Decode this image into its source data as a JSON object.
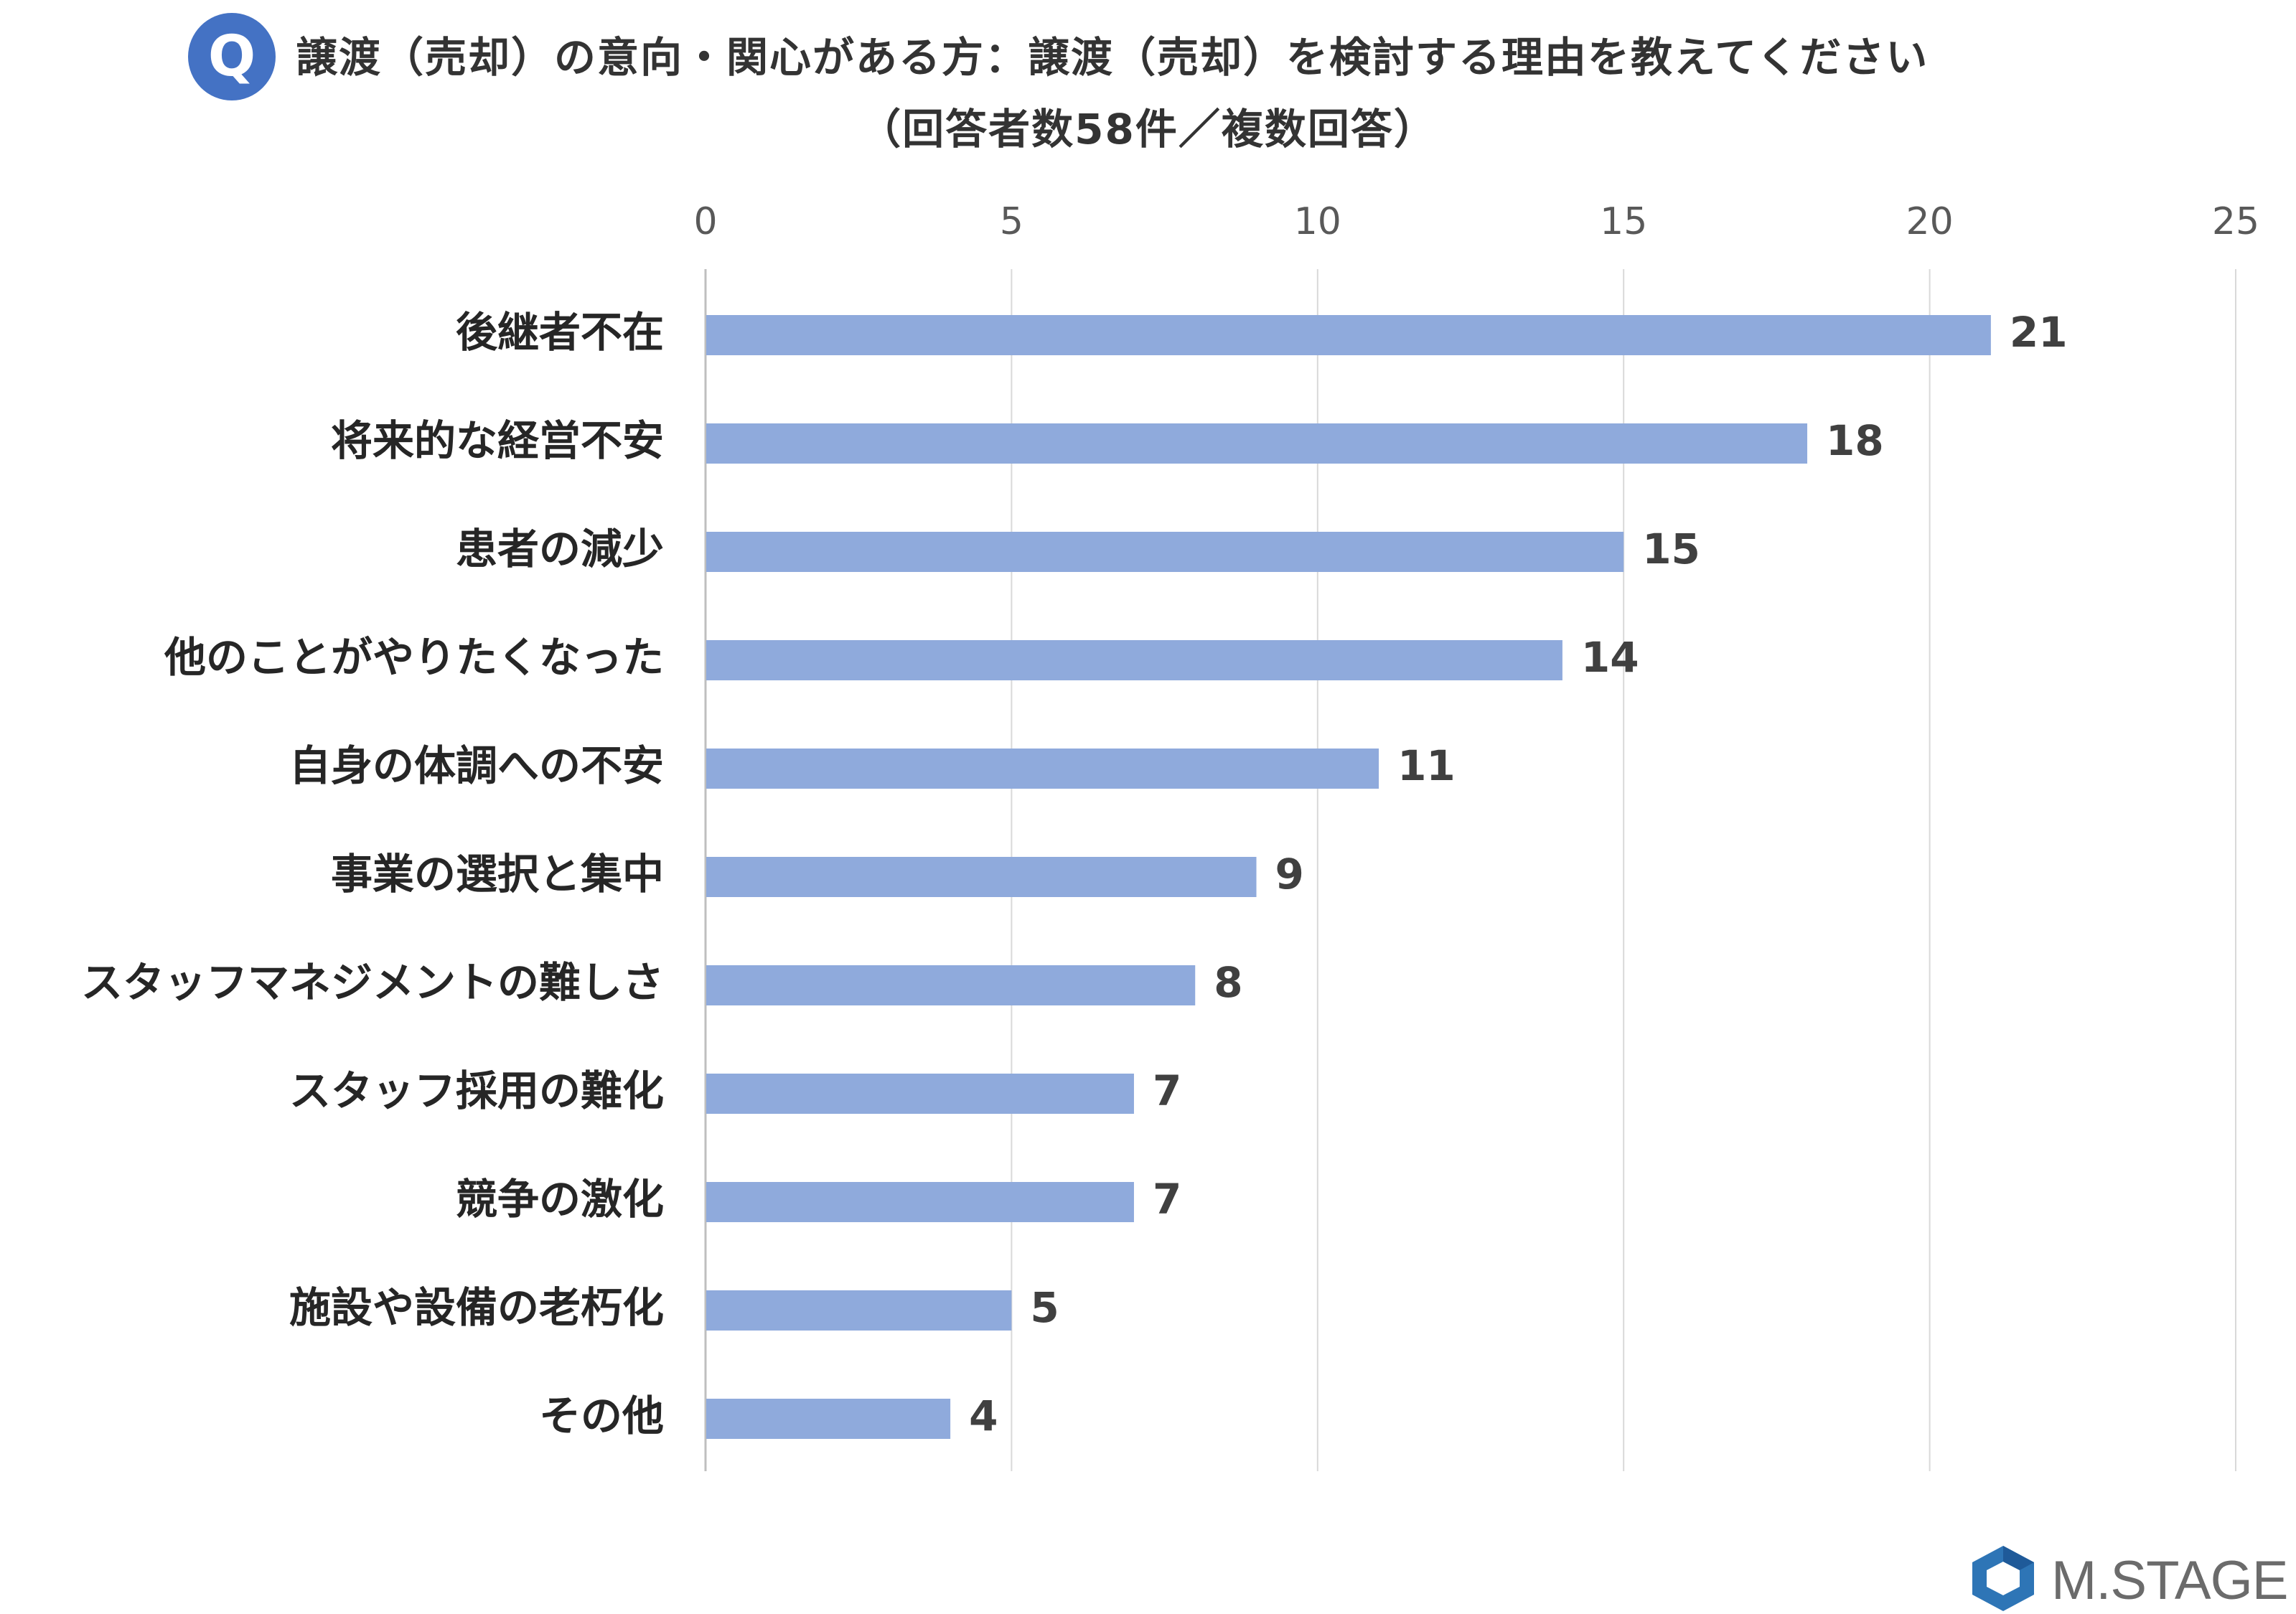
{
  "header": {
    "badge": "Q",
    "title_line1": "譲渡（売却）の意向・関心がある方：譲渡（売却）を検討する理由を教えてください",
    "title_line2": "（回答者数58件／複数回答）"
  },
  "chart_data": {
    "type": "bar",
    "orientation": "horizontal",
    "categories": [
      "後継者不在",
      "将来的な経営不安",
      "患者の減少",
      "他のことがやりたくなった",
      "自身の体調への不安",
      "事業の選択と集中",
      "スタッフマネジメントの難しさ",
      "スタッフ採用の難化",
      "競争の激化",
      "施設や設備の老朽化",
      "その他"
    ],
    "values": [
      21,
      18,
      15,
      14,
      11,
      9,
      8,
      7,
      7,
      5,
      4
    ],
    "data_labels": [
      "21",
      "18",
      "15",
      "14",
      "11",
      "9",
      "8",
      "7",
      "7",
      "5",
      "4"
    ],
    "xlim": [
      0,
      25
    ],
    "xticks": [
      0,
      5,
      10,
      15,
      20,
      25
    ],
    "xtick_labels": [
      "0",
      "5",
      "10",
      "15",
      "20",
      "25"
    ],
    "xaxis_position": "top",
    "grid": true,
    "legend": "none",
    "bar_color": "#8FAADC",
    "grid_color": "#D9D9D9"
  },
  "logo": {
    "text": "M.STAGE",
    "color": "#2E75B6"
  }
}
